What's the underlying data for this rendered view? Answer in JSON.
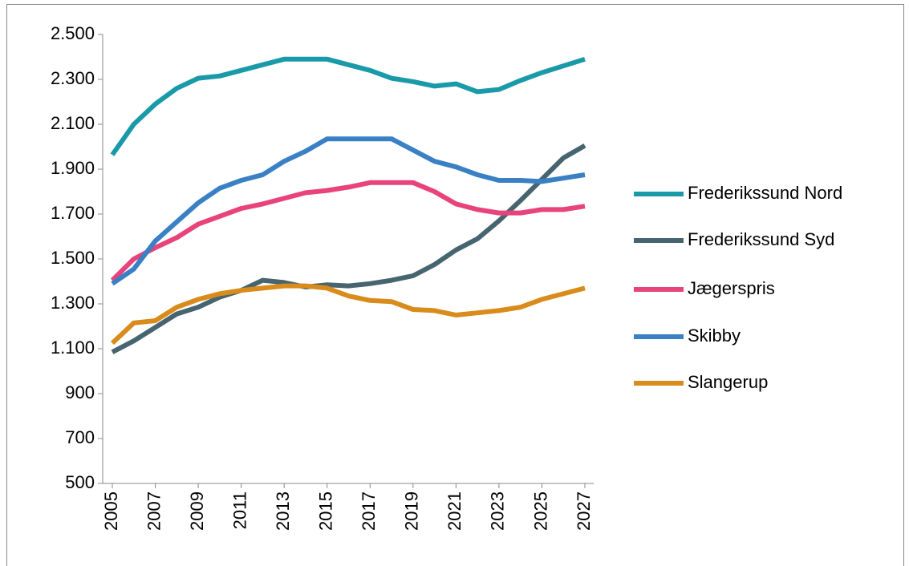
{
  "chart_data": {
    "type": "line",
    "x": [
      2005,
      2006,
      2007,
      2008,
      2009,
      2010,
      2011,
      2012,
      2013,
      2014,
      2015,
      2016,
      2017,
      2018,
      2019,
      2020,
      2021,
      2022,
      2023,
      2024,
      2025,
      2026,
      2027
    ],
    "xlim": [
      2005,
      2027
    ],
    "xticks": [
      2005,
      2007,
      2009,
      2011,
      2013,
      2015,
      2017,
      2019,
      2021,
      2023,
      2025,
      2027
    ],
    "ylim": [
      500,
      2500
    ],
    "yticks": [
      {
        "value": 500,
        "label": "500"
      },
      {
        "value": 700,
        "label": "700"
      },
      {
        "value": 900,
        "label": "900"
      },
      {
        "value": 1100,
        "label": "1.100"
      },
      {
        "value": 1300,
        "label": "1.300"
      },
      {
        "value": 1500,
        "label": "1.500"
      },
      {
        "value": 1700,
        "label": "1.700"
      },
      {
        "value": 1900,
        "label": "1.900"
      },
      {
        "value": 2100,
        "label": "2.100"
      },
      {
        "value": 2300,
        "label": "2.300"
      },
      {
        "value": 2500,
        "label": "2.500"
      }
    ],
    "grid": false,
    "legend": "right",
    "series": [
      {
        "name": "Frederikssund Nord",
        "color": "#1a9aa8",
        "values": [
          1964,
          2100,
          2190,
          2260,
          2305,
          2315,
          2340,
          2365,
          2390,
          2390,
          2390,
          2365,
          2340,
          2305,
          2290,
          2270,
          2280,
          2245,
          2255,
          2295,
          2330,
          2360,
          2390
        ]
      },
      {
        "name": "Frederikssund Syd",
        "color": "#466570",
        "values": [
          1085,
          1135,
          1195,
          1255,
          1285,
          1330,
          1360,
          1405,
          1395,
          1375,
          1385,
          1380,
          1390,
          1405,
          1425,
          1475,
          1540,
          1590,
          1670,
          1760,
          1855,
          1950,
          2005
        ]
      },
      {
        "name": "Jægerspris",
        "color": "#e8437a",
        "values": [
          1405,
          1500,
          1550,
          1595,
          1655,
          1690,
          1725,
          1745,
          1770,
          1795,
          1805,
          1820,
          1840,
          1840,
          1840,
          1800,
          1745,
          1720,
          1705,
          1705,
          1720,
          1720,
          1735
        ]
      },
      {
        "name": "Skibby",
        "color": "#3a80c4",
        "values": [
          1390,
          1455,
          1580,
          1665,
          1750,
          1815,
          1850,
          1875,
          1935,
          1980,
          2035,
          2035,
          2035,
          2035,
          1985,
          1935,
          1910,
          1875,
          1850,
          1850,
          1845,
          1860,
          1875
        ]
      },
      {
        "name": "Slangerup",
        "color": "#d98b1c",
        "values": [
          1125,
          1215,
          1225,
          1285,
          1320,
          1345,
          1360,
          1370,
          1380,
          1380,
          1370,
          1335,
          1315,
          1310,
          1275,
          1270,
          1250,
          1260,
          1270,
          1285,
          1320,
          1345,
          1370
        ]
      }
    ]
  }
}
